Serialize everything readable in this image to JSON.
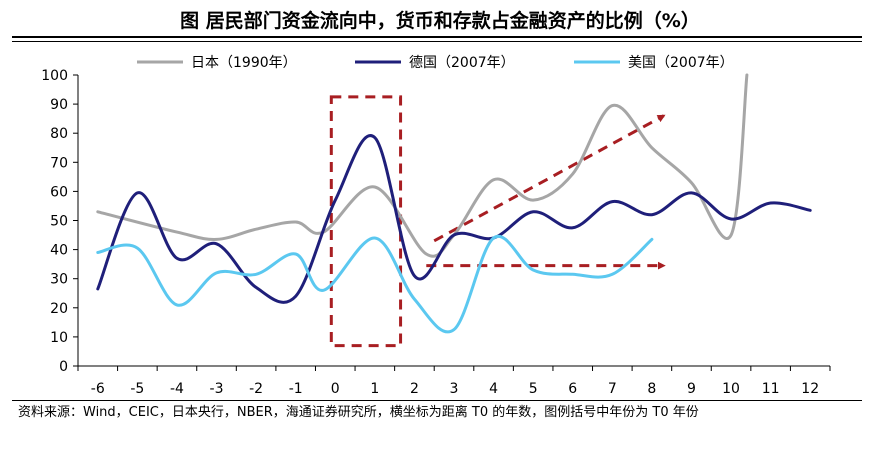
{
  "title": "图  居民部门资金流向中，货币和存款占金融资产的比例（%）",
  "source": "资料来源：Wind，CEIC，日本央行，NBER，海通证券研究所，横坐标为距离 T0 的年数，图例括号中年份为 T0 年份",
  "chart_data": {
    "type": "line",
    "title": "居民部门资金流向中，货币和存款占金融资产的比例（%）",
    "xlabel": "",
    "ylabel": "",
    "ylim": [
      0,
      100
    ],
    "yticks": [
      0,
      10,
      20,
      30,
      40,
      50,
      60,
      70,
      80,
      90,
      100
    ],
    "x": [
      -6,
      -5,
      -4,
      -3,
      -2,
      -1,
      0,
      1,
      2,
      3,
      4,
      5,
      6,
      7,
      8,
      9,
      10,
      11,
      12
    ],
    "grid": false,
    "legend_position": "top",
    "series": [
      {
        "name": "日本（1990年）",
        "color": "#a6a6a6",
        "points": [
          [
            -6,
            53
          ],
          [
            -4,
            46
          ],
          [
            -3,
            43.5
          ],
          [
            -2,
            47
          ],
          [
            -1,
            49.5
          ],
          [
            -0.3,
            46
          ],
          [
            1,
            61.5
          ],
          [
            2.3,
            38.5
          ],
          [
            3,
            45
          ],
          [
            4,
            64
          ],
          [
            5,
            57
          ],
          [
            6,
            66
          ],
          [
            7,
            89.5
          ],
          [
            8,
            75
          ],
          [
            9,
            63
          ],
          [
            10,
            45
          ],
          [
            10.4,
            100
          ]
        ]
      },
      {
        "name": "德国（2007年）",
        "color": "#1f1f7a",
        "points": [
          [
            -6,
            26.5
          ],
          [
            -5,
            59.5
          ],
          [
            -4,
            37
          ],
          [
            -3,
            42
          ],
          [
            -2,
            27
          ],
          [
            -1,
            24
          ],
          [
            0,
            57
          ],
          [
            1,
            78.5
          ],
          [
            2,
            31
          ],
          [
            3,
            45
          ],
          [
            4,
            44
          ],
          [
            5,
            53
          ],
          [
            6,
            47.5
          ],
          [
            7,
            56.5
          ],
          [
            8,
            52
          ],
          [
            9,
            59.5
          ],
          [
            10,
            50.5
          ],
          [
            11,
            56
          ],
          [
            12,
            53.5
          ]
        ]
      },
      {
        "name": "美国（2007年）",
        "color": "#5bc8f0",
        "points": [
          [
            -6,
            39
          ],
          [
            -5,
            40.5
          ],
          [
            -4,
            21
          ],
          [
            -3,
            32
          ],
          [
            -2,
            31.5
          ],
          [
            -1,
            38.5
          ],
          [
            -0.3,
            26
          ],
          [
            1,
            44
          ],
          [
            2,
            23
          ],
          [
            3,
            12.5
          ],
          [
            4,
            44
          ],
          [
            5,
            33
          ],
          [
            6,
            31.5
          ],
          [
            7,
            31.5
          ],
          [
            8,
            43.5
          ]
        ]
      }
    ],
    "annotations": {
      "highlight_box": {
        "x_range": [
          -0.1,
          1.65
        ],
        "y_range": [
          7,
          92.5
        ],
        "color": "#a81e22",
        "style": "dashed"
      },
      "arrows": [
        {
          "from": [
            2.5,
            43
          ],
          "to": [
            8.3,
            86
          ],
          "color": "#a81e22",
          "style": "dashed"
        },
        {
          "from": [
            2.3,
            34.5
          ],
          "to": [
            8.3,
            34.5
          ],
          "color": "#a81e22",
          "style": "dashed"
        }
      ]
    }
  }
}
